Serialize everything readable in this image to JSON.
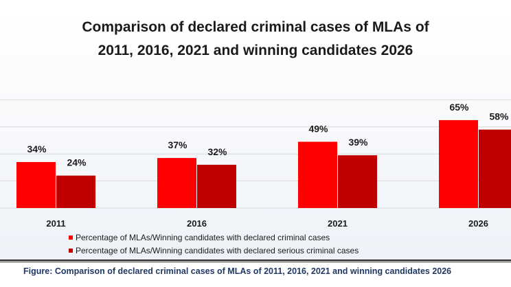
{
  "chart_data": {
    "type": "bar",
    "title_lines": [
      "Comparison of declared criminal cases of MLAs of",
      "2011, 2016, 2021 and winning candidates 2026"
    ],
    "categories": [
      "2011",
      "2016",
      "2021",
      "2026"
    ],
    "series": [
      {
        "name": "Percentage of MLAs/Winning candidates with declared criminal  cases",
        "values": [
          34,
          37,
          49,
          65
        ],
        "labels": [
          "34%",
          "37%",
          "49%",
          "65%"
        ],
        "color": "#ff0000"
      },
      {
        "name": "Percentage of MLAs/Winning candidates with declared serious criminal cases",
        "values": [
          24,
          32,
          39,
          58
        ],
        "labels": [
          "24%",
          "32%",
          "39%",
          "58%"
        ],
        "color": "#c00000"
      }
    ],
    "ylim": [
      0,
      80
    ],
    "gridlines": [
      20,
      40,
      60,
      80
    ],
    "grid": true,
    "legend_position": "bottom"
  },
  "caption": "Figure: Comparison of declared criminal cases of MLAs of 2011, 2016, 2021 and winning candidates 2026"
}
